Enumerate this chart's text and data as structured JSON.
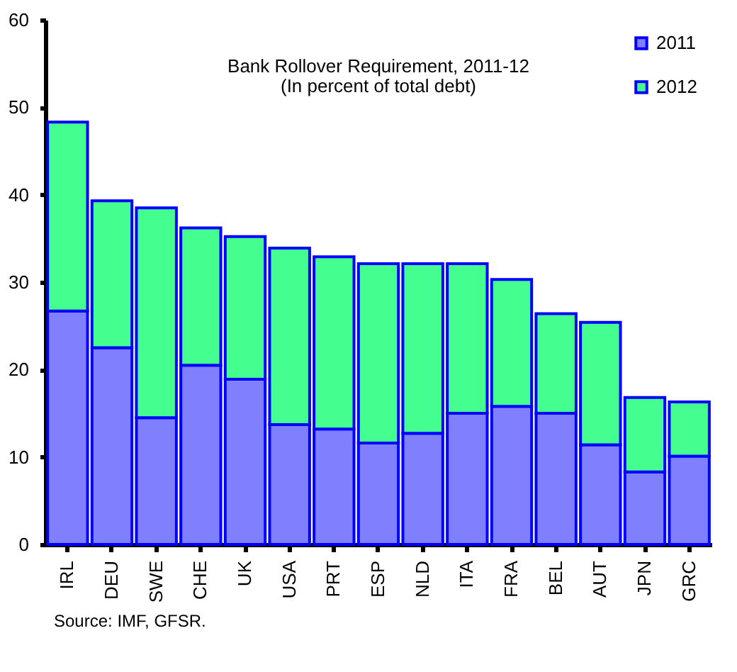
{
  "chart_data": {
    "type": "bar",
    "title": "Bank Rollover Requirement, 2011-12",
    "subtitle": "(In percent of total debt)",
    "stacked": true,
    "categories": [
      "IRL",
      "DEU",
      "SWE",
      "CHE",
      "UK",
      "USA",
      "PRT",
      "ESP",
      "NLD",
      "ITA",
      "FRA",
      "BEL",
      "AUT",
      "JPN",
      "GRC"
    ],
    "series": [
      {
        "name": "2011",
        "color": "#8080ff",
        "values": [
          26.7,
          22.5,
          14.5,
          20.5,
          18.9,
          13.7,
          13.2,
          11.6,
          12.7,
          15.0,
          15.8,
          15.0,
          11.4,
          8.3,
          10.1
        ]
      },
      {
        "name": "2012",
        "color": "#44ff90",
        "values": [
          21.6,
          16.8,
          24.0,
          15.7,
          16.3,
          20.2,
          19.7,
          20.5,
          19.4,
          17.1,
          14.5,
          11.4,
          14.0,
          8.5,
          6.2
        ]
      }
    ],
    "ylim": [
      0,
      60
    ],
    "yticks": [
      0,
      10,
      20,
      30,
      40,
      50,
      60
    ],
    "grid": false,
    "legend": "top right",
    "annotations": [
      "Source: IMF, GFSR."
    ]
  }
}
